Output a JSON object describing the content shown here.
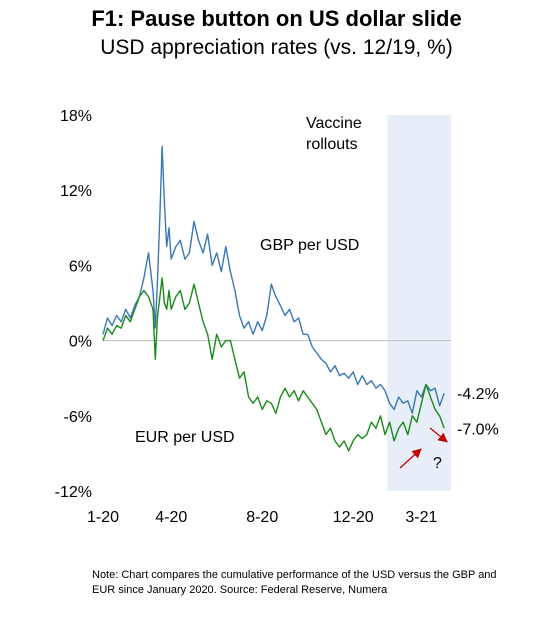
{
  "title": "F1: Pause button on US dollar slide",
  "subtitle": "USD appreciation rates (vs. 12/19, %)",
  "note": "Note: Chart compares the cumulative performance of the USD versus the GBP and EUR since January 2020. Source: Federal Reserve, Numera",
  "colors": {
    "gbp": "#3a78b5",
    "eur": "#1a8a1a",
    "shade": "#e8eef8",
    "arrow": "#c00000",
    "zero": "#c0c0c0"
  },
  "chart_data": {
    "type": "line",
    "ylim": [
      -12,
      18
    ],
    "yticks": [
      {
        "value": 18,
        "label": "18%"
      },
      {
        "value": 12,
        "label": "12%"
      },
      {
        "value": 6,
        "label": "6%"
      },
      {
        "value": 0,
        "label": "0%"
      },
      {
        "value": -6,
        "label": "-6%"
      },
      {
        "value": -12,
        "label": "-12%"
      }
    ],
    "xlim": [
      0,
      15.3
    ],
    "xticks": [
      {
        "value": 0,
        "label": "1-20"
      },
      {
        "value": 3,
        "label": "4-20"
      },
      {
        "value": 7,
        "label": "8-20"
      },
      {
        "value": 11,
        "label": "12-20"
      },
      {
        "value": 14,
        "label": "3-21"
      }
    ],
    "shade": {
      "from": 12.5,
      "to": 15.3,
      "label_lines": [
        "Vaccine",
        "rollouts"
      ]
    },
    "annotation": "?",
    "series": [
      {
        "name": "GBP per USD",
        "end_label": "-4.2%",
        "x": [
          0,
          0.2,
          0.4,
          0.6,
          0.8,
          1.0,
          1.2,
          1.4,
          1.6,
          1.8,
          2.0,
          2.2,
          2.3,
          2.4,
          2.5,
          2.6,
          2.7,
          2.8,
          2.9,
          3.0,
          3.2,
          3.4,
          3.6,
          3.8,
          4.0,
          4.2,
          4.4,
          4.6,
          4.8,
          5.0,
          5.2,
          5.4,
          5.6,
          5.8,
          6.0,
          6.2,
          6.4,
          6.6,
          6.8,
          7.0,
          7.2,
          7.4,
          7.6,
          7.8,
          8.0,
          8.2,
          8.4,
          8.6,
          8.8,
          9.0,
          9.2,
          9.4,
          9.6,
          9.8,
          10.0,
          10.2,
          10.4,
          10.6,
          10.8,
          11.0,
          11.2,
          11.4,
          11.6,
          11.8,
          12.0,
          12.2,
          12.4,
          12.6,
          12.8,
          13.0,
          13.2,
          13.4,
          13.6,
          13.8,
          14.0,
          14.2,
          14.4,
          14.6,
          14.8,
          15.0
        ],
        "y": [
          0.5,
          1.8,
          1.2,
          2.0,
          1.5,
          2.5,
          1.8,
          2.8,
          3.5,
          5.0,
          7.0,
          4.0,
          1.0,
          5.0,
          10.0,
          15.5,
          11.0,
          7.5,
          9.0,
          6.5,
          7.5,
          8.0,
          6.5,
          7.0,
          9.5,
          8.0,
          7.0,
          8.5,
          6.0,
          7.0,
          5.5,
          7.5,
          5.5,
          4.0,
          2.0,
          1.0,
          1.5,
          0.5,
          1.5,
          0.8,
          2.0,
          4.5,
          3.5,
          2.8,
          2.0,
          2.5,
          1.5,
          1.8,
          0.5,
          0.5,
          -0.5,
          -1.0,
          -1.5,
          -1.8,
          -2.5,
          -2.0,
          -2.8,
          -2.6,
          -3.0,
          -2.5,
          -3.5,
          -2.8,
          -3.5,
          -3.2,
          -3.8,
          -3.5,
          -4.0,
          -5.0,
          -5.5,
          -4.5,
          -5.0,
          -4.8,
          -5.8,
          -4.0,
          -4.5,
          -3.5,
          -4.0,
          -3.8,
          -5.2,
          -4.2
        ]
      },
      {
        "name": "EUR per USD",
        "end_label": "-7.0%",
        "x": [
          0,
          0.2,
          0.4,
          0.6,
          0.8,
          1.0,
          1.2,
          1.4,
          1.6,
          1.8,
          2.0,
          2.2,
          2.3,
          2.4,
          2.5,
          2.6,
          2.7,
          2.8,
          2.9,
          3.0,
          3.2,
          3.4,
          3.6,
          3.8,
          4.0,
          4.2,
          4.4,
          4.6,
          4.8,
          5.0,
          5.2,
          5.4,
          5.6,
          5.8,
          6.0,
          6.2,
          6.4,
          6.6,
          6.8,
          7.0,
          7.2,
          7.4,
          7.6,
          7.8,
          8.0,
          8.2,
          8.4,
          8.6,
          8.8,
          9.0,
          9.2,
          9.4,
          9.6,
          9.8,
          10.0,
          10.2,
          10.4,
          10.6,
          10.8,
          11.0,
          11.2,
          11.4,
          11.6,
          11.8,
          12.0,
          12.2,
          12.4,
          12.6,
          12.8,
          13.0,
          13.2,
          13.4,
          13.6,
          13.8,
          14.0,
          14.2,
          14.4,
          14.6,
          14.8,
          15.0
        ],
        "y": [
          0.0,
          1.0,
          0.5,
          1.2,
          1.0,
          2.0,
          1.5,
          2.5,
          3.5,
          4.0,
          3.5,
          2.5,
          -1.5,
          2.0,
          3.5,
          5.0,
          3.0,
          2.5,
          4.0,
          2.5,
          3.5,
          4.0,
          2.5,
          3.0,
          4.5,
          3.0,
          1.5,
          0.5,
          -1.5,
          0.5,
          -0.5,
          0.0,
          0.0,
          -1.5,
          -3.0,
          -2.5,
          -4.5,
          -5.0,
          -4.5,
          -5.5,
          -4.8,
          -5.0,
          -5.8,
          -4.5,
          -3.8,
          -4.5,
          -4.0,
          -4.8,
          -4.0,
          -4.5,
          -5.0,
          -5.5,
          -6.5,
          -7.5,
          -7.0,
          -8.0,
          -8.5,
          -8.0,
          -8.8,
          -8.0,
          -7.5,
          -7.8,
          -7.5,
          -6.5,
          -7.0,
          -6.0,
          -7.5,
          -6.5,
          -8.0,
          -7.0,
          -6.5,
          -7.5,
          -6.0,
          -6.5,
          -5.0,
          -3.5,
          -4.5,
          -5.5,
          -6.0,
          -7.0
        ]
      }
    ]
  }
}
